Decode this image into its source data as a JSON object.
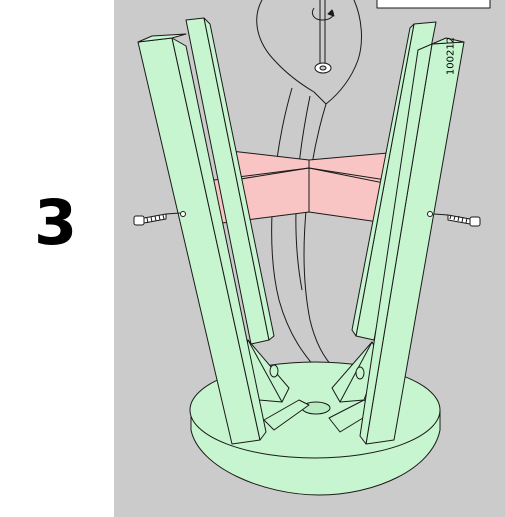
{
  "step": {
    "number": "3"
  },
  "detail_callout": {
    "part_code": "100212"
  },
  "colors": {
    "background": "#cbcbcb",
    "wood_parts": "#c6f5cf",
    "new_parts": "#f8c4c4",
    "outline": "#1a1a1a"
  },
  "icons": [
    "allen-key-icon",
    "screw-icon"
  ]
}
